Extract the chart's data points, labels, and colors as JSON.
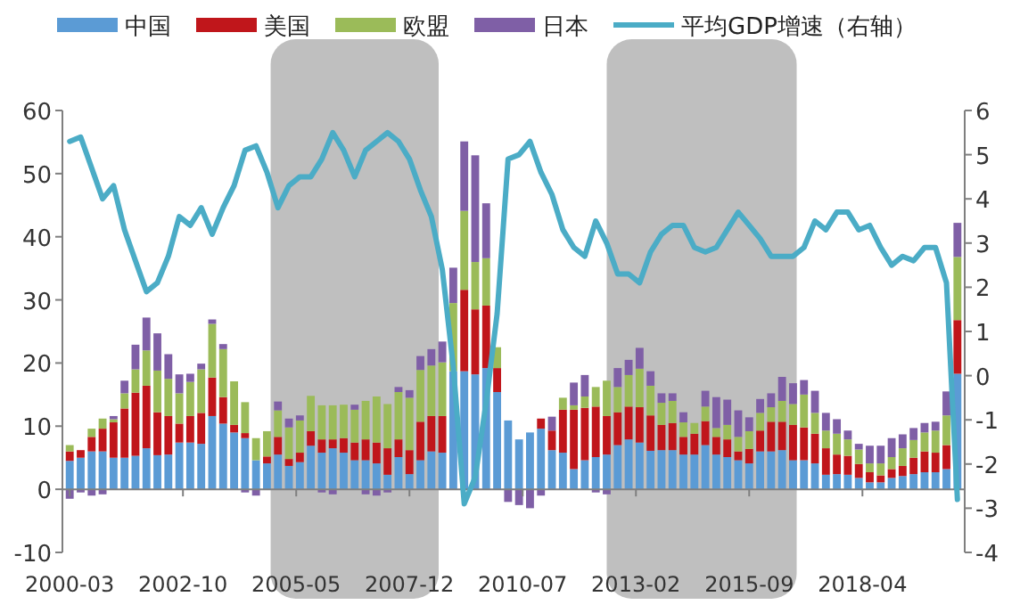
{
  "chart_data": {
    "type": "bar",
    "stacked": true,
    "legend": "top",
    "x": [
      "2000-03",
      "2000-06",
      "2000-09",
      "2000-12",
      "2001-03",
      "2001-06",
      "2001-09",
      "2001-12",
      "2002-03",
      "2002-06",
      "2002-09",
      "2002-12",
      "2003-03",
      "2003-06",
      "2003-09",
      "2003-12",
      "2004-03",
      "2004-06",
      "2004-09",
      "2004-12",
      "2005-03",
      "2005-06",
      "2005-09",
      "2005-12",
      "2006-03",
      "2006-06",
      "2006-09",
      "2006-12",
      "2007-03",
      "2007-06",
      "2007-09",
      "2007-12",
      "2008-03",
      "2008-06",
      "2008-09",
      "2008-12",
      "2009-03",
      "2009-06",
      "2009-09",
      "2009-12",
      "2010-03",
      "2010-06",
      "2010-09",
      "2010-12",
      "2011-03",
      "2011-06",
      "2011-09",
      "2011-12",
      "2012-03",
      "2012-06",
      "2012-09",
      "2012-12",
      "2013-03",
      "2013-06",
      "2013-09",
      "2013-12",
      "2014-03",
      "2014-06",
      "2014-09",
      "2014-12",
      "2015-03",
      "2015-06",
      "2015-09",
      "2015-12",
      "2016-03",
      "2016-06",
      "2016-09",
      "2016-12",
      "2017-03",
      "2017-06",
      "2017-09",
      "2017-12",
      "2018-03",
      "2018-06",
      "2018-09",
      "2018-12",
      "2019-03",
      "2019-06",
      "2019-09",
      "2019-12",
      "2020-03",
      "2020-06"
    ],
    "xlim": [
      "2000-01",
      "2020-08"
    ],
    "xticks": [
      "2000-03",
      "2002-10",
      "2005-05",
      "2007-12",
      "2010-07",
      "2013-02",
      "2015-09",
      "2018-04"
    ],
    "ylim": [
      -10,
      60
    ],
    "yticks": [
      -10,
      0,
      10,
      20,
      30,
      40,
      50,
      60
    ],
    "y2lim": [
      -4,
      6
    ],
    "y2ticks": [
      -4,
      -3,
      -2,
      -1,
      0,
      1,
      2,
      3,
      4,
      5,
      6
    ],
    "bands": [
      {
        "axis": "x",
        "from": "2004-10",
        "to": "2008-08",
        "color": "#bfbfbf"
      },
      {
        "axis": "x",
        "from": "2012-06",
        "to": "2016-10",
        "color": "#bfbfbf"
      }
    ],
    "series": [
      {
        "name": "中国",
        "color": "#5b9bd5",
        "values": [
          4.5,
          5,
          6,
          6,
          5,
          5,
          5.3,
          6.5,
          5.4,
          5.5,
          7.4,
          7.4,
          7.2,
          11.6,
          10.4,
          9,
          8.1,
          4.6,
          4.1,
          5.5,
          3.7,
          4.3,
          6.9,
          5.8,
          6.5,
          5.8,
          4.6,
          4.6,
          4.1,
          2.3,
          5.1,
          2.4,
          4.6,
          6,
          5.8,
          18.7,
          18.7,
          18.2,
          19.2,
          15.4,
          10.9,
          7.9,
          9,
          9.6,
          6.2,
          5.8,
          3.2,
          4.6,
          5.1,
          5.5,
          7,
          7.9,
          7.4,
          6.1,
          6.2,
          6.2,
          5.5,
          5.5,
          7,
          5.5,
          5.1,
          4.6,
          4.1,
          6,
          6,
          6.2,
          4.6,
          4.6,
          4.1,
          2.3,
          2.4,
          2.3,
          1.8,
          1.1,
          1.1,
          1.8,
          2.1,
          2.4,
          2.7,
          2.7,
          3.2,
          18.3
        ]
      },
      {
        "name": "美国",
        "color": "#c0161b",
        "values": [
          1.5,
          1.2,
          2.3,
          3.6,
          5.6,
          7.8,
          10,
          9.9,
          6.8,
          6.1,
          3,
          4.2,
          4.9,
          6.1,
          4.2,
          1.2,
          0.8,
          0,
          1.1,
          2.8,
          1.1,
          1.5,
          2.3,
          2.1,
          1.4,
          2.3,
          2.8,
          3.3,
          3.3,
          4.2,
          2.8,
          3.8,
          6.1,
          5.6,
          5.8,
          null,
          12.9,
          10.3,
          9.9,
          3.8,
          0,
          0,
          0,
          1.6,
          3.1,
          6.8,
          9.4,
          8.3,
          8,
          6.1,
          5.2,
          5.2,
          5.6,
          5.6,
          4,
          4.3,
          2.8,
          3.3,
          3.8,
          2.8,
          2.8,
          1.4,
          2.3,
          3.3,
          4.7,
          4.5,
          5.6,
          5.2,
          4.7,
          4.2,
          3.1,
          3,
          2.2,
          1.6,
          1.1,
          1.4,
          1.6,
          2.6,
          3.3,
          3.1,
          3.8,
          8.5
        ]
      },
      {
        "name": "欧盟",
        "color": "#9bbb59",
        "values": [
          1,
          0,
          1.3,
          1.6,
          0.5,
          2.4,
          3.7,
          5.6,
          6.6,
          5.9,
          4.8,
          5.4,
          6.9,
          8.5,
          7.6,
          6.9,
          4.9,
          3.5,
          4,
          4.2,
          5,
          5.1,
          5.6,
          5.4,
          5.4,
          5.3,
          5.2,
          6.1,
          7.3,
          7,
          7.5,
          8.3,
          8.2,
          8,
          8.5,
          10.8,
          12.5,
          7.5,
          7.5,
          3.3,
          0,
          0,
          0,
          0,
          0,
          1.9,
          0.7,
          1.8,
          3.1,
          5.6,
          4,
          5,
          6.1,
          4.7,
          3.5,
          3.5,
          2.3,
          1.7,
          2.3,
          1.4,
          2.3,
          2.3,
          2.8,
          2.8,
          2.3,
          3.3,
          3.3,
          5.2,
          3.3,
          2.8,
          3.3,
          2.6,
          2.3,
          1.4,
          1.9,
          1.9,
          2.8,
          2.8,
          3,
          3.5,
          4.7,
          10
        ]
      },
      {
        "name": "日本",
        "color": "#7f5fa6",
        "values": [
          -1.5,
          -0.5,
          -1,
          -0.8,
          0.5,
          2,
          3.9,
          5.2,
          5.9,
          3.9,
          3,
          1.3,
          0.9,
          0.7,
          0.8,
          null,
          -0.5,
          -1,
          null,
          1.4,
          1.4,
          0.8,
          0,
          -0.5,
          -0.8,
          0,
          0.8,
          -0.8,
          -1,
          -0.5,
          0.8,
          1.2,
          2.2,
          2.6,
          3.3,
          5.6,
          11,
          16.9,
          8.7,
          null,
          -2,
          -2.5,
          -3,
          -1,
          2.2,
          0,
          3.6,
          3.4,
          -0.5,
          -0.8,
          3,
          2.4,
          3.3,
          2.3,
          1.5,
          1.2,
          1.6,
          0,
          2.5,
          4.9,
          4,
          4.2,
          2.2,
          2.2,
          2.2,
          3.8,
          3.3,
          2.3,
          3.5,
          2.8,
          2.3,
          1.4,
          0.9,
          2.8,
          2.8,
          3,
          2.2,
          1.9,
          1.5,
          1.4,
          3.8,
          5.4
        ]
      },
      {
        "name": "平均GDP增速（右轴）",
        "type": "line",
        "axis": "y2",
        "color": "#4bacc6",
        "values": [
          5.3,
          5.4,
          4.7,
          4.0,
          4.3,
          3.3,
          2.6,
          1.9,
          2.1,
          2.7,
          3.6,
          3.4,
          3.8,
          3.2,
          3.8,
          4.3,
          5.1,
          5.2,
          4.6,
          3.8,
          4.3,
          4.5,
          4.5,
          4.9,
          5.5,
          5.1,
          4.5,
          5.1,
          5.3,
          5.5,
          5.3,
          4.9,
          4.2,
          3.6,
          2.4,
          0.2,
          -2.9,
          -2.3,
          -0.6,
          1.4,
          4.9,
          5.0,
          5.3,
          4.6,
          4.1,
          3.3,
          2.9,
          2.7,
          3.5,
          3.0,
          2.3,
          2.3,
          2.1,
          2.8,
          3.2,
          3.4,
          3.4,
          2.9,
          2.8,
          2.9,
          3.3,
          3.7,
          3.4,
          3.1,
          2.7,
          2.7,
          2.7,
          2.9,
          3.5,
          3.3,
          3.7,
          3.7,
          3.3,
          3.4,
          2.9,
          2.5,
          2.7,
          2.6,
          2.9,
          2.9,
          2.1,
          -2.8
        ]
      }
    ]
  }
}
